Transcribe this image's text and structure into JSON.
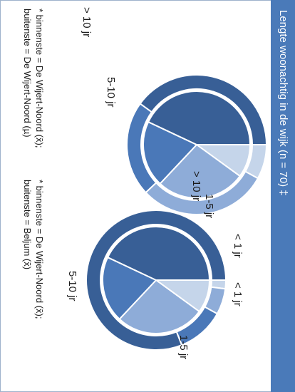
{
  "panel": {
    "title": "Lengte woonachtig in de wijk (n = 70) ‡"
  },
  "chart_data": [
    {
      "type": "pie",
      "inner": {
        "categories": [
          "< 1 jr",
          "1-5 jr",
          "5-10 jr",
          "> 10 jr"
        ],
        "values": [
          10,
          27,
          20,
          43
        ],
        "colors": [
          "#c5d5ea",
          "#8eacd8",
          "#4a78b8",
          "#385f96"
        ]
      },
      "outer": {
        "categories": [
          "< 1 jr",
          "1-5 jr",
          "5-10 jr",
          "> 10 jr"
        ],
        "values": [
          8,
          30,
          22,
          40
        ],
        "colors": [
          "#c5d5ea",
          "#8eacd8",
          "#4a78b8",
          "#385f96"
        ]
      },
      "labels": {
        "lt1": "< 1 jr",
        "y1to5": "1-5 jr",
        "y5to10": "5-10 jr",
        "gt10": "> 10 jr"
      },
      "footnote": {
        "line1": "* binnenste = De Wijert-Noord (x̄);",
        "line2": "buitenste = De Wijert-Noord (µ)"
      }
    },
    {
      "type": "pie",
      "inner": {
        "categories": [
          "< 1 jr",
          "1-5 jr",
          "5-10 jr",
          "> 10 jr"
        ],
        "values": [
          10,
          27,
          20,
          43
        ],
        "colors": [
          "#c5d5ea",
          "#8eacd8",
          "#4a78b8",
          "#385f96"
        ]
      },
      "outer": {
        "categories": [
          "< 1 jr",
          "1-5 jr",
          "5-10 jr",
          "> 10 jr"
        ],
        "values": [
          2,
          6,
          11,
          81
        ],
        "colors": [
          "#c5d5ea",
          "#8eacd8",
          "#4a78b8",
          "#385f96"
        ]
      },
      "labels": {
        "lt1": "< 1 jr",
        "y1to5": "1-5 jr",
        "y5to10": "5-10 jr"
      },
      "footnote": {
        "line1": "* binnenste = De Wijert-Noord (x̄);",
        "line2": "buitenste = Beljum (x̄)"
      }
    }
  ]
}
